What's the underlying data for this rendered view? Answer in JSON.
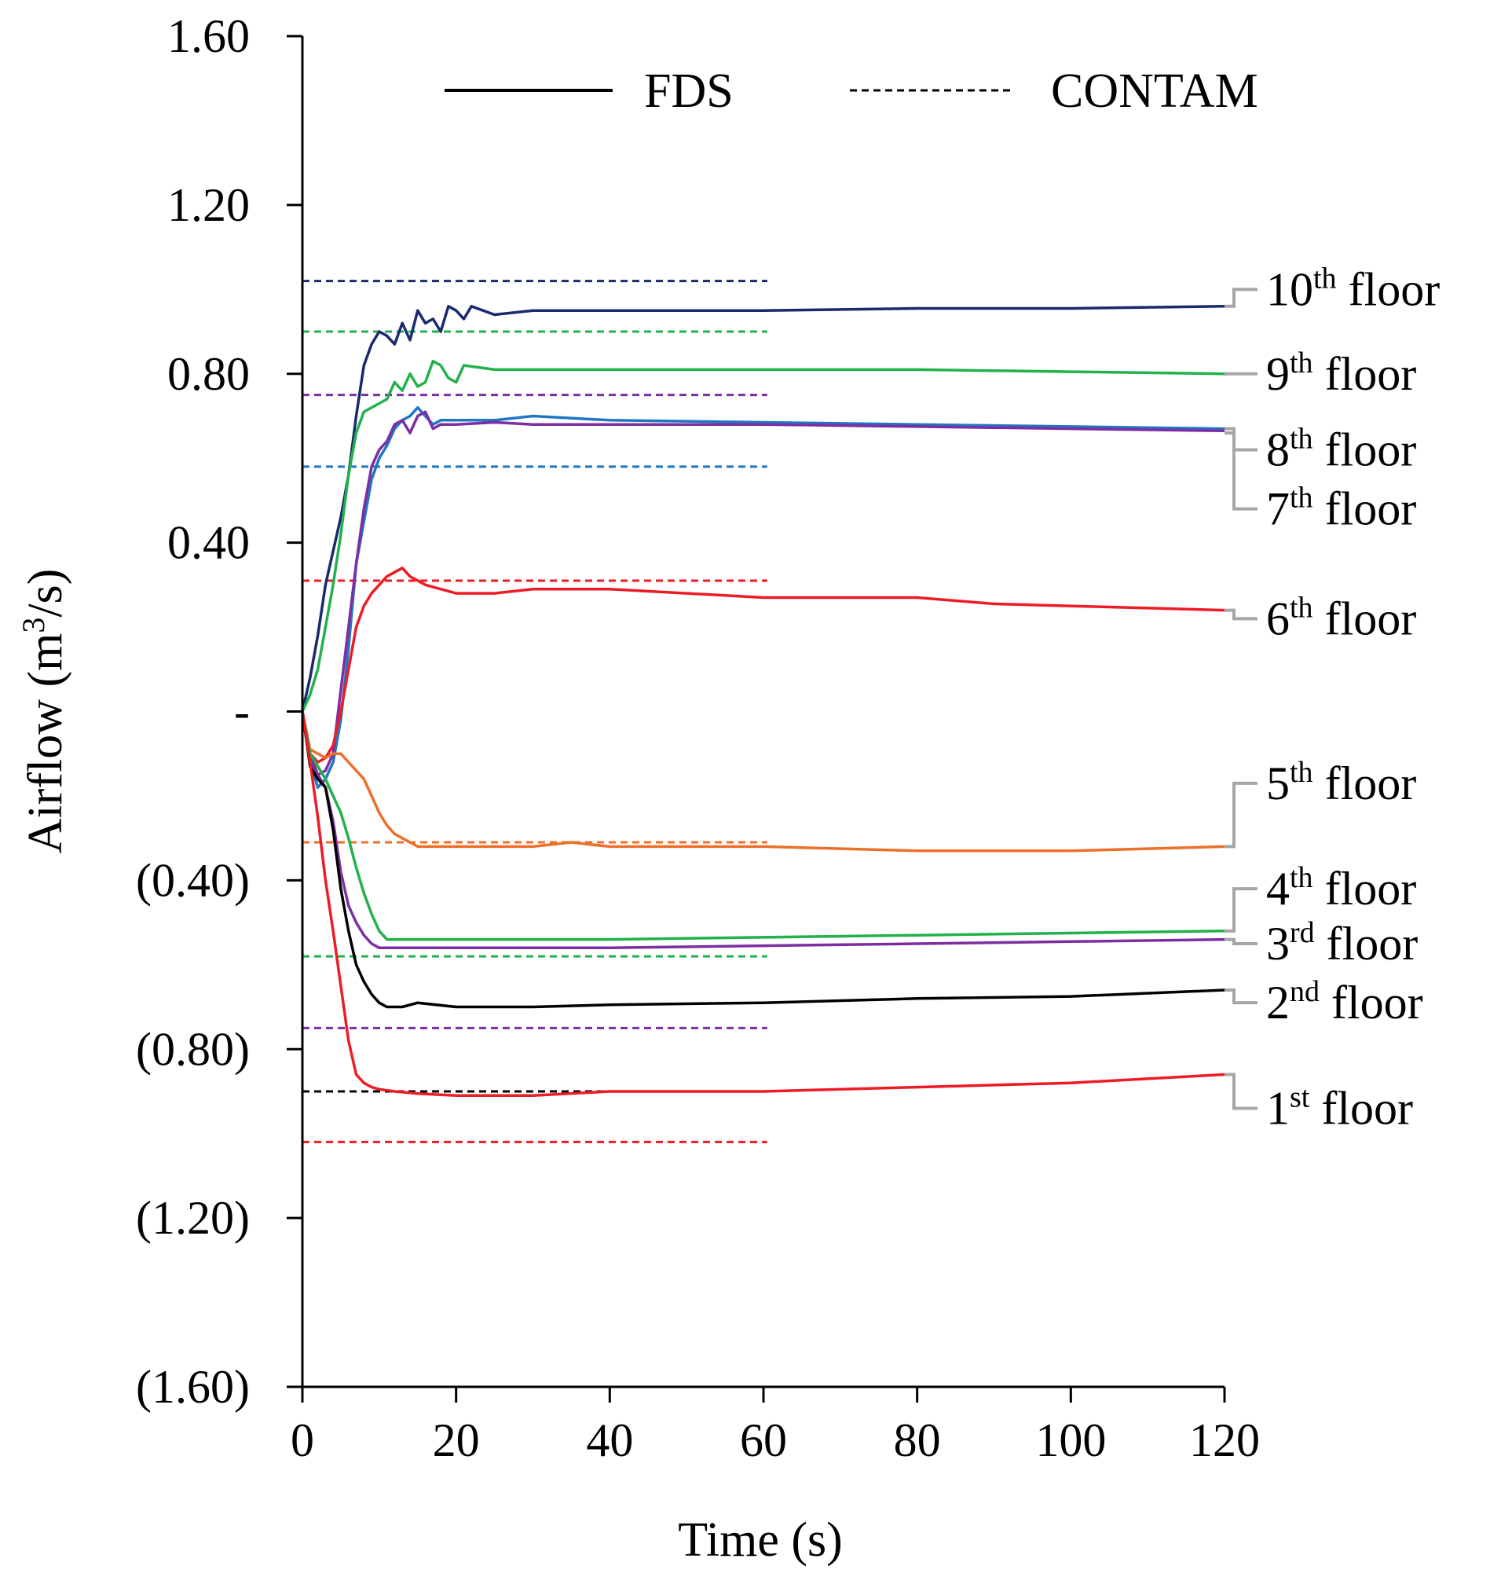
{
  "chart_data": {
    "type": "line",
    "xlabel": "Time (s)",
    "ylabel_parts": [
      "Airflow (m",
      "3",
      "/s)"
    ],
    "xlim": [
      0,
      120
    ],
    "ylim": [
      -1.6,
      1.6
    ],
    "xticks": [
      0,
      20,
      40,
      60,
      80,
      100,
      120
    ],
    "yticks": [
      {
        "value": 1.6,
        "label": "1.60"
      },
      {
        "value": 1.2,
        "label": "1.20"
      },
      {
        "value": 0.8,
        "label": "0.80"
      },
      {
        "value": 0.4,
        "label": "0.40"
      },
      {
        "value": 0.0,
        "label": "-"
      },
      {
        "value": -0.4,
        "label": "(0.40)"
      },
      {
        "value": -0.8,
        "label": "(0.80)"
      },
      {
        "value": -1.2,
        "label": "(1.20)"
      },
      {
        "value": -1.6,
        "label": "(1.60)"
      }
    ],
    "legend": [
      {
        "name": "FDS",
        "style": "solid"
      },
      {
        "name": "CONTAM",
        "style": "dashed"
      }
    ],
    "leader_color": "#a6a6a6",
    "series": [
      {
        "name": "10th floor",
        "num": "10",
        "sup": "th",
        "color": "#1a2a6c",
        "contam": 1.02,
        "fds_end": 0.96,
        "label_y": 1.0,
        "fds": [
          [
            0,
            0
          ],
          [
            1,
            0.08
          ],
          [
            2,
            0.18
          ],
          [
            3,
            0.3
          ],
          [
            4,
            0.38
          ],
          [
            5,
            0.46
          ],
          [
            6,
            0.56
          ],
          [
            7,
            0.7
          ],
          [
            8,
            0.82
          ],
          [
            9,
            0.87
          ],
          [
            10,
            0.9
          ],
          [
            11,
            0.89
          ],
          [
            12,
            0.87
          ],
          [
            13,
            0.92
          ],
          [
            14,
            0.88
          ],
          [
            15,
            0.95
          ],
          [
            16,
            0.92
          ],
          [
            17,
            0.93
          ],
          [
            18,
            0.9
          ],
          [
            19,
            0.96
          ],
          [
            20,
            0.95
          ],
          [
            21,
            0.93
          ],
          [
            22,
            0.96
          ],
          [
            25,
            0.94
          ],
          [
            30,
            0.95
          ],
          [
            40,
            0.95
          ],
          [
            50,
            0.95
          ],
          [
            60,
            0.95
          ],
          [
            80,
            0.955
          ],
          [
            100,
            0.955
          ],
          [
            120,
            0.96
          ]
        ]
      },
      {
        "name": "9th floor",
        "num": "9",
        "sup": "th",
        "color": "#22b14c",
        "contam": 0.9,
        "fds_end": 0.8,
        "label_y": 0.8,
        "fds": [
          [
            0,
            0
          ],
          [
            1,
            0.04
          ],
          [
            2,
            0.1
          ],
          [
            3,
            0.2
          ],
          [
            4,
            0.3
          ],
          [
            5,
            0.42
          ],
          [
            6,
            0.56
          ],
          [
            7,
            0.66
          ],
          [
            8,
            0.71
          ],
          [
            9,
            0.72
          ],
          [
            10,
            0.73
          ],
          [
            11,
            0.74
          ],
          [
            12,
            0.78
          ],
          [
            13,
            0.76
          ],
          [
            14,
            0.8
          ],
          [
            15,
            0.77
          ],
          [
            16,
            0.78
          ],
          [
            17,
            0.83
          ],
          [
            18,
            0.82
          ],
          [
            19,
            0.79
          ],
          [
            20,
            0.78
          ],
          [
            21,
            0.82
          ],
          [
            25,
            0.81
          ],
          [
            30,
            0.81
          ],
          [
            40,
            0.81
          ],
          [
            60,
            0.81
          ],
          [
            80,
            0.81
          ],
          [
            100,
            0.805
          ],
          [
            120,
            0.8
          ]
        ]
      },
      {
        "name": "8th floor",
        "num": "8",
        "sup": "th",
        "color": "#1f77c4",
        "contam": 0.58,
        "fds_end": 0.67,
        "label_y": 0.62,
        "fds": [
          [
            0,
            0
          ],
          [
            1,
            -0.12
          ],
          [
            2,
            -0.18
          ],
          [
            3,
            -0.16
          ],
          [
            4,
            -0.12
          ],
          [
            5,
            -0.02
          ],
          [
            6,
            0.15
          ],
          [
            7,
            0.35
          ],
          [
            8,
            0.45
          ],
          [
            9,
            0.55
          ],
          [
            10,
            0.6
          ],
          [
            11,
            0.63
          ],
          [
            12,
            0.67
          ],
          [
            13,
            0.69
          ],
          [
            14,
            0.7
          ],
          [
            15,
            0.72
          ],
          [
            16,
            0.7
          ],
          [
            17,
            0.68
          ],
          [
            18,
            0.69
          ],
          [
            20,
            0.69
          ],
          [
            25,
            0.69
          ],
          [
            30,
            0.7
          ],
          [
            40,
            0.69
          ],
          [
            60,
            0.685
          ],
          [
            80,
            0.68
          ],
          [
            100,
            0.675
          ],
          [
            120,
            0.67
          ]
        ]
      },
      {
        "name": "7th floor",
        "num": "7",
        "sup": "th",
        "color": "#7d2ea3",
        "contam": 0.75,
        "fds_end": 0.66,
        "label_y": 0.48,
        "fds": [
          [
            0,
            0
          ],
          [
            1,
            -0.1
          ],
          [
            2,
            -0.15
          ],
          [
            3,
            -0.14
          ],
          [
            4,
            -0.1
          ],
          [
            5,
            0.05
          ],
          [
            6,
            0.2
          ],
          [
            7,
            0.35
          ],
          [
            8,
            0.48
          ],
          [
            9,
            0.58
          ],
          [
            10,
            0.62
          ],
          [
            11,
            0.64
          ],
          [
            12,
            0.68
          ],
          [
            13,
            0.69
          ],
          [
            14,
            0.66
          ],
          [
            15,
            0.7
          ],
          [
            16,
            0.71
          ],
          [
            17,
            0.67
          ],
          [
            18,
            0.68
          ],
          [
            20,
            0.68
          ],
          [
            25,
            0.685
          ],
          [
            30,
            0.68
          ],
          [
            40,
            0.68
          ],
          [
            60,
            0.68
          ],
          [
            80,
            0.675
          ],
          [
            100,
            0.67
          ],
          [
            120,
            0.665
          ]
        ]
      },
      {
        "name": "6th floor",
        "num": "6",
        "sup": "th",
        "color": "#ed1c24",
        "contam": 0.31,
        "fds_end": 0.24,
        "label_y": 0.22,
        "fds": [
          [
            0,
            0
          ],
          [
            1,
            -0.1
          ],
          [
            2,
            -0.12
          ],
          [
            3,
            -0.11
          ],
          [
            4,
            -0.08
          ],
          [
            5,
            0.0
          ],
          [
            6,
            0.1
          ],
          [
            7,
            0.2
          ],
          [
            8,
            0.25
          ],
          [
            9,
            0.28
          ],
          [
            10,
            0.3
          ],
          [
            11,
            0.32
          ],
          [
            12,
            0.33
          ],
          [
            13,
            0.34
          ],
          [
            14,
            0.32
          ],
          [
            15,
            0.31
          ],
          [
            16,
            0.3
          ],
          [
            18,
            0.29
          ],
          [
            20,
            0.28
          ],
          [
            25,
            0.28
          ],
          [
            30,
            0.29
          ],
          [
            40,
            0.29
          ],
          [
            50,
            0.28
          ],
          [
            60,
            0.27
          ],
          [
            70,
            0.27
          ],
          [
            80,
            0.27
          ],
          [
            90,
            0.255
          ],
          [
            100,
            0.25
          ],
          [
            110,
            0.245
          ],
          [
            120,
            0.24
          ]
        ]
      },
      {
        "name": "5th floor",
        "num": "5",
        "sup": "th",
        "color": "#ec6f2a",
        "contam": -0.31,
        "fds_end": -0.32,
        "label_y": -0.17,
        "fds": [
          [
            0,
            0
          ],
          [
            1,
            -0.09
          ],
          [
            2,
            -0.1
          ],
          [
            3,
            -0.11
          ],
          [
            4,
            -0.1
          ],
          [
            5,
            -0.1
          ],
          [
            6,
            -0.12
          ],
          [
            7,
            -0.14
          ],
          [
            8,
            -0.16
          ],
          [
            9,
            -0.2
          ],
          [
            10,
            -0.24
          ],
          [
            11,
            -0.27
          ],
          [
            12,
            -0.29
          ],
          [
            13,
            -0.3
          ],
          [
            15,
            -0.32
          ],
          [
            20,
            -0.32
          ],
          [
            25,
            -0.32
          ],
          [
            30,
            -0.32
          ],
          [
            35,
            -0.31
          ],
          [
            40,
            -0.32
          ],
          [
            50,
            -0.32
          ],
          [
            60,
            -0.32
          ],
          [
            80,
            -0.33
          ],
          [
            100,
            -0.33
          ],
          [
            120,
            -0.32
          ]
        ]
      },
      {
        "name": "4th floor",
        "num": "4",
        "sup": "th",
        "color": "#22b14c",
        "contam": -0.58,
        "fds_end": -0.52,
        "label_y": -0.42,
        "fds": [
          [
            0,
            0
          ],
          [
            1,
            -0.1
          ],
          [
            2,
            -0.13
          ],
          [
            3,
            -0.16
          ],
          [
            4,
            -0.2
          ],
          [
            5,
            -0.24
          ],
          [
            6,
            -0.3
          ],
          [
            7,
            -0.37
          ],
          [
            8,
            -0.43
          ],
          [
            9,
            -0.48
          ],
          [
            10,
            -0.52
          ],
          [
            11,
            -0.54
          ],
          [
            13,
            -0.54
          ],
          [
            15,
            -0.54
          ],
          [
            20,
            -0.54
          ],
          [
            30,
            -0.54
          ],
          [
            40,
            -0.54
          ],
          [
            60,
            -0.535
          ],
          [
            80,
            -0.53
          ],
          [
            100,
            -0.525
          ],
          [
            120,
            -0.52
          ]
        ]
      },
      {
        "name": "3rd floor",
        "num": "3",
        "sup": "rd",
        "color": "#7d2ea3",
        "contam": -0.75,
        "fds_end": -0.54,
        "label_y": -0.55,
        "fds": [
          [
            0,
            0
          ],
          [
            1,
            -0.12
          ],
          [
            2,
            -0.15
          ],
          [
            3,
            -0.18
          ],
          [
            4,
            -0.26
          ],
          [
            5,
            -0.38
          ],
          [
            6,
            -0.46
          ],
          [
            7,
            -0.5
          ],
          [
            8,
            -0.53
          ],
          [
            9,
            -0.55
          ],
          [
            10,
            -0.56
          ],
          [
            12,
            -0.56
          ],
          [
            15,
            -0.56
          ],
          [
            20,
            -0.56
          ],
          [
            30,
            -0.56
          ],
          [
            40,
            -0.56
          ],
          [
            60,
            -0.555
          ],
          [
            80,
            -0.55
          ],
          [
            100,
            -0.545
          ],
          [
            120,
            -0.54
          ]
        ]
      },
      {
        "name": "2nd floor",
        "num": "2",
        "sup": "nd",
        "color": "#000000",
        "contam": -0.9,
        "fds_end": -0.66,
        "label_y": -0.69,
        "fds": [
          [
            0,
            0
          ],
          [
            1,
            -0.13
          ],
          [
            2,
            -0.16
          ],
          [
            3,
            -0.18
          ],
          [
            4,
            -0.28
          ],
          [
            5,
            -0.42
          ],
          [
            6,
            -0.52
          ],
          [
            7,
            -0.6
          ],
          [
            8,
            -0.64
          ],
          [
            9,
            -0.67
          ],
          [
            10,
            -0.69
          ],
          [
            11,
            -0.7
          ],
          [
            13,
            -0.7
          ],
          [
            15,
            -0.69
          ],
          [
            20,
            -0.7
          ],
          [
            25,
            -0.7
          ],
          [
            30,
            -0.7
          ],
          [
            40,
            -0.695
          ],
          [
            60,
            -0.69
          ],
          [
            80,
            -0.68
          ],
          [
            100,
            -0.675
          ],
          [
            120,
            -0.66
          ]
        ]
      },
      {
        "name": "1st floor",
        "num": "1",
        "sup": "st",
        "color": "#ed1c24",
        "contam": -1.02,
        "fds_end": -0.86,
        "label_y": -0.94,
        "fds": [
          [
            0,
            0
          ],
          [
            1,
            -0.12
          ],
          [
            2,
            -0.25
          ],
          [
            3,
            -0.4
          ],
          [
            4,
            -0.52
          ],
          [
            5,
            -0.65
          ],
          [
            6,
            -0.78
          ],
          [
            7,
            -0.86
          ],
          [
            8,
            -0.88
          ],
          [
            9,
            -0.89
          ],
          [
            10,
            -0.895
          ],
          [
            12,
            -0.9
          ],
          [
            15,
            -0.905
          ],
          [
            20,
            -0.91
          ],
          [
            30,
            -0.91
          ],
          [
            40,
            -0.9
          ],
          [
            60,
            -0.9
          ],
          [
            80,
            -0.89
          ],
          [
            100,
            -0.88
          ],
          [
            120,
            -0.86
          ]
        ]
      }
    ]
  }
}
